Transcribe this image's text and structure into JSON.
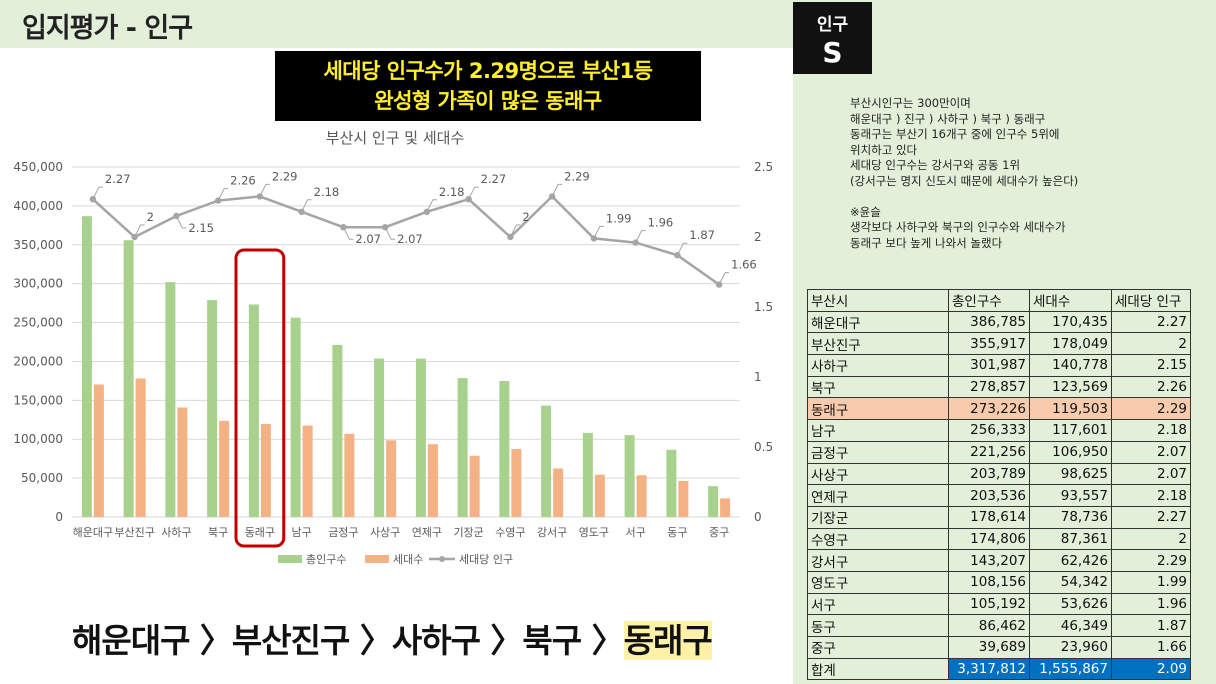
{
  "page": {
    "title": "입지평가 - 인구",
    "badge_line1": "인구",
    "badge_line2": "S",
    "headline_line1": "세대당 인구수가 2.29명으로 부산1등",
    "headline_line2": "완성형 가족이 많은 동래구"
  },
  "notes": [
    "부산시인구는 300만이며",
    "해운대구 ) 진구 ) 사하구 ) 북구 ) 동래구",
    "동래구는 부산기 16개구 중에 인구수 5위에",
    "위치하고 있다",
    "세대당 인구수는 강서구와 공동 1위",
    "(강서구는 명지 신도시 때문에 세대수가 높은다)",
    "",
    "※윤슬",
    "생각보다 사하구와 북구의 인구수와 세대수가",
    "동래구 보다 높게 나와서 놀랬다"
  ],
  "summary": {
    "prefix": "해운대구 〉부산진구 〉사하구 〉북구 〉",
    "highlight": "동래구"
  },
  "table": {
    "headers": [
      "부산시",
      "총인구수",
      "세대수",
      "세대당 인구"
    ],
    "rows": [
      [
        "해운대구",
        "386,785",
        "170,435",
        "2.27"
      ],
      [
        "부산진구",
        "355,917",
        "178,049",
        "2"
      ],
      [
        "사하구",
        "301,987",
        "140,778",
        "2.15"
      ],
      [
        "북구",
        "278,857",
        "123,569",
        "2.26"
      ],
      [
        "동래구",
        "273,226",
        "119,503",
        "2.29"
      ],
      [
        "남구",
        "256,333",
        "117,601",
        "2.18"
      ],
      [
        "금정구",
        "221,256",
        "106,950",
        "2.07"
      ],
      [
        "사상구",
        "203,789",
        "98,625",
        "2.07"
      ],
      [
        "연제구",
        "203,536",
        "93,557",
        "2.18"
      ],
      [
        "기장군",
        "178,614",
        "78,736",
        "2.27"
      ],
      [
        "수영구",
        "174,806",
        "87,361",
        "2"
      ],
      [
        "강서구",
        "143,207",
        "62,426",
        "2.29"
      ],
      [
        "영도구",
        "108,156",
        "54,342",
        "1.99"
      ],
      [
        "서구",
        "105,192",
        "53,626",
        "1.96"
      ],
      [
        "동구",
        "86,462",
        "46,349",
        "1.87"
      ],
      [
        "중구",
        "39,689",
        "23,960",
        "1.66"
      ]
    ],
    "highlight_row": "동래구",
    "total": [
      "합계",
      "3,317,812",
      "1,555,867",
      "2.09"
    ]
  },
  "colors": {
    "bar_population": "#a9d18e",
    "bar_households": "#f4b183",
    "line_ratio": "#a5a5a5",
    "highlight_box": "#c00000",
    "panel_bg": "#e2efd9",
    "headline_text": "#ffef2a",
    "total_bg": "#0070c0"
  },
  "chart_data": {
    "type": "bar",
    "title": "부산시 인구 및 세대수",
    "categories": [
      "해운대구",
      "부산진구",
      "사하구",
      "북구",
      "동래구",
      "남구",
      "금정구",
      "사상구",
      "연제구",
      "기장군",
      "수영구",
      "강서구",
      "영도구",
      "서구",
      "동구",
      "중구"
    ],
    "series": [
      {
        "name": "총인구수",
        "type": "bar",
        "axis": "left",
        "values": [
          386785,
          355917,
          301987,
          278857,
          273226,
          256333,
          221256,
          203789,
          203536,
          178614,
          174806,
          143207,
          108156,
          105192,
          86462,
          39689
        ]
      },
      {
        "name": "세대수",
        "type": "bar",
        "axis": "left",
        "values": [
          170435,
          178049,
          140778,
          123569,
          119503,
          117601,
          106950,
          98625,
          93557,
          78736,
          87361,
          62426,
          54342,
          53626,
          46349,
          23960
        ]
      },
      {
        "name": "세대당 인구",
        "type": "line",
        "axis": "right",
        "values": [
          2.27,
          2,
          2.15,
          2.26,
          2.29,
          2.18,
          2.07,
          2.07,
          2.18,
          2.27,
          2,
          2.29,
          1.99,
          1.96,
          1.87,
          1.66
        ]
      }
    ],
    "y_left": {
      "min": 0,
      "max": 450000,
      "step": 50000,
      "ticks": [
        "0",
        "50,000",
        "100,000",
        "150,000",
        "200,000",
        "250,000",
        "300,000",
        "350,000",
        "400,000",
        "450,000"
      ]
    },
    "y_right": {
      "min": 0,
      "max": 2.5,
      "step": 0.5,
      "ticks": [
        "0",
        "0.5",
        "1",
        "1.5",
        "2",
        "2.5"
      ]
    },
    "highlight_category": "동래구",
    "line_labels": [
      "2.27",
      "2",
      "2.15",
      "2.26",
      "2.29",
      "2.18",
      "2.07",
      "2.07",
      "2.18",
      "2.27",
      "2",
      "2.29",
      "1.99",
      "1.96",
      "1.87",
      "1.66"
    ],
    "legend_position": "bottom",
    "grid": true
  }
}
